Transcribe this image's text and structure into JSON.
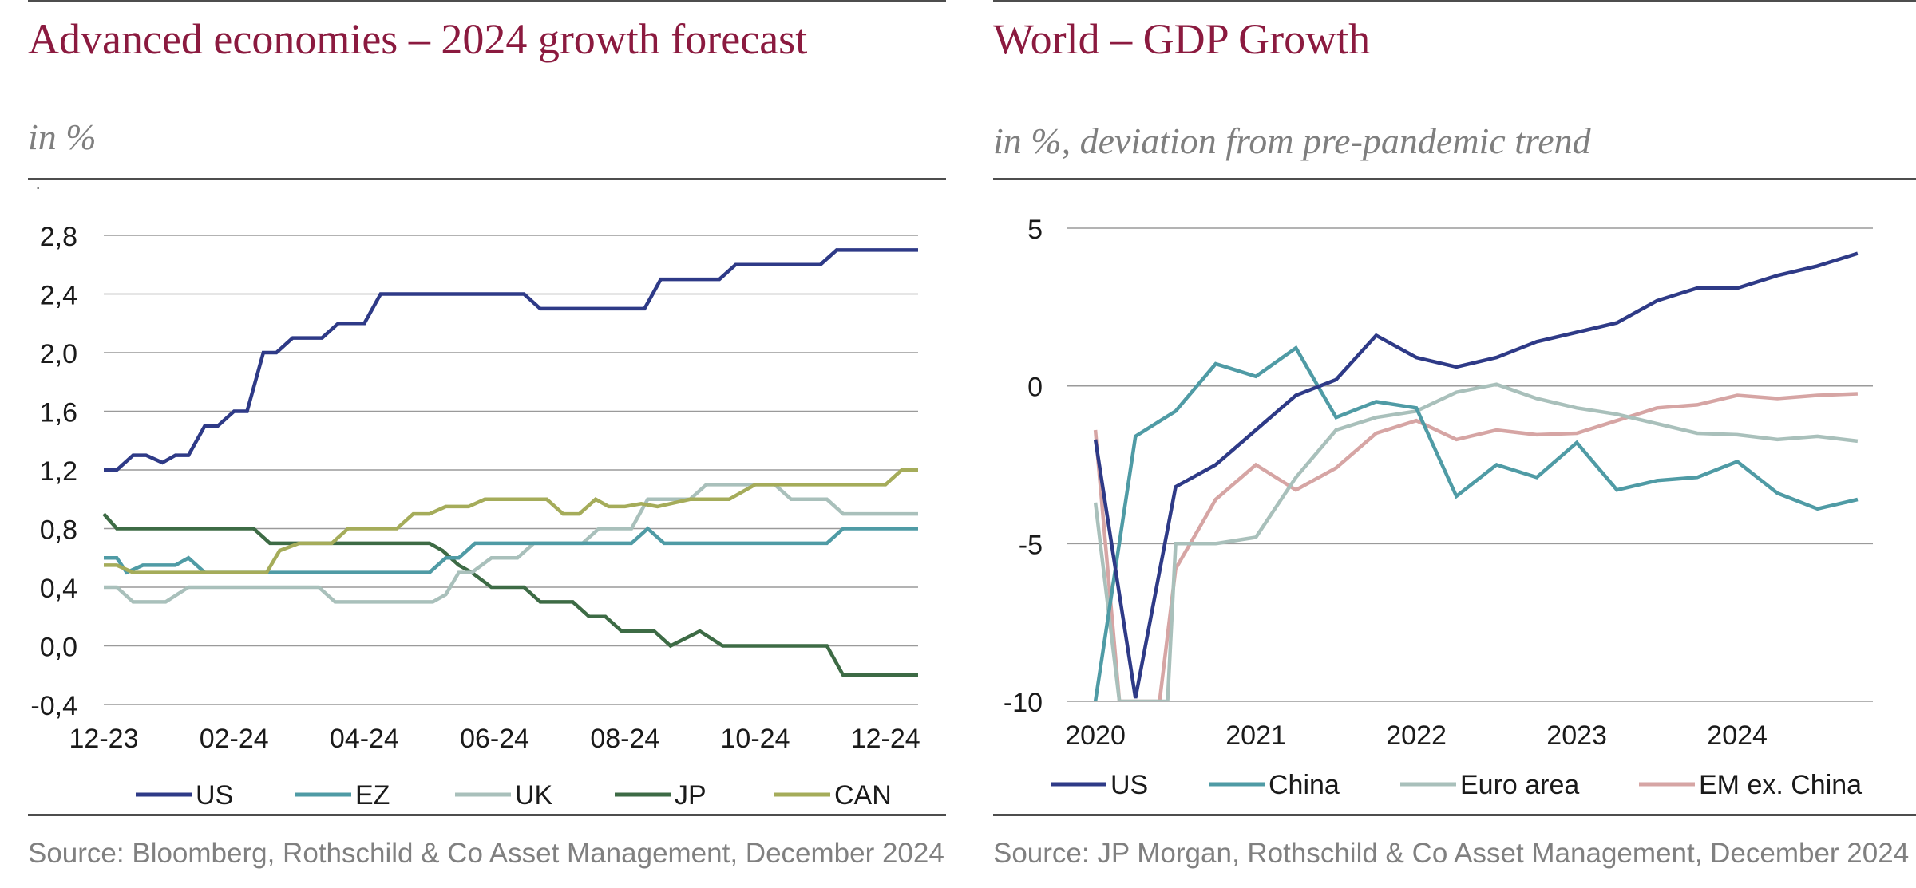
{
  "chart_data": [
    {
      "type": "line",
      "title": "Advanced economies – 2024 growth forecast",
      "subtitle": "in %",
      "source": "Source: Bloomberg, Rothschild & Co Asset Management, December 2024",
      "ylim": [
        -0.4,
        2.8
      ],
      "yticks": [
        -0.4,
        0.0,
        0.4,
        0.8,
        1.2,
        1.6,
        2.0,
        2.4,
        2.8
      ],
      "ytick_labels": [
        "-0,4",
        "0,0",
        "0,4",
        "0,8",
        "1,2",
        "1,6",
        "2,0",
        "2,4",
        "2,8"
      ],
      "x_range": [
        0,
        12.5
      ],
      "xtick_labels": [
        "12-23",
        "02-24",
        "04-24",
        "06-24",
        "08-24",
        "10-24",
        "12-24"
      ],
      "grid": true,
      "legend_position": "bottom",
      "series": [
        {
          "name": "US",
          "color": "#2e3a87",
          "points": [
            [
              0,
              1.2
            ],
            [
              0.2,
              1.2
            ],
            [
              0.45,
              1.3
            ],
            [
              0.65,
              1.3
            ],
            [
              0.9,
              1.25
            ],
            [
              1.1,
              1.3
            ],
            [
              1.3,
              1.3
            ],
            [
              1.55,
              1.5
            ],
            [
              1.75,
              1.5
            ],
            [
              2.0,
              1.6
            ],
            [
              2.2,
              1.6
            ],
            [
              2.45,
              2.0
            ],
            [
              2.65,
              2.0
            ],
            [
              2.9,
              2.1
            ],
            [
              3.35,
              2.1
            ],
            [
              3.6,
              2.2
            ],
            [
              4.0,
              2.2
            ],
            [
              4.25,
              2.4
            ],
            [
              6.45,
              2.4
            ],
            [
              6.7,
              2.3
            ],
            [
              8.3,
              2.3
            ],
            [
              8.55,
              2.5
            ],
            [
              9.45,
              2.5
            ],
            [
              9.7,
              2.6
            ],
            [
              11.0,
              2.6
            ],
            [
              11.25,
              2.7
            ],
            [
              12.5,
              2.7
            ]
          ]
        },
        {
          "name": "EZ",
          "color": "#4f9ba5",
          "points": [
            [
              0,
              0.6
            ],
            [
              0.2,
              0.6
            ],
            [
              0.35,
              0.5
            ],
            [
              0.6,
              0.55
            ],
            [
              1.1,
              0.55
            ],
            [
              1.3,
              0.6
            ],
            [
              1.55,
              0.5
            ],
            [
              5.0,
              0.5
            ],
            [
              5.25,
              0.6
            ],
            [
              5.45,
              0.6
            ],
            [
              5.7,
              0.7
            ],
            [
              8.1,
              0.7
            ],
            [
              8.35,
              0.8
            ],
            [
              8.6,
              0.7
            ],
            [
              11.1,
              0.7
            ],
            [
              11.35,
              0.8
            ],
            [
              12.5,
              0.8
            ]
          ]
        },
        {
          "name": "UK",
          "color": "#a9c0bb",
          "points": [
            [
              0,
              0.4
            ],
            [
              0.2,
              0.4
            ],
            [
              0.45,
              0.3
            ],
            [
              0.95,
              0.3
            ],
            [
              1.3,
              0.4
            ],
            [
              3.3,
              0.4
            ],
            [
              3.55,
              0.3
            ],
            [
              5.05,
              0.3
            ],
            [
              5.25,
              0.35
            ],
            [
              5.45,
              0.5
            ],
            [
              5.65,
              0.5
            ],
            [
              5.95,
              0.6
            ],
            [
              6.35,
              0.6
            ],
            [
              6.6,
              0.7
            ],
            [
              7.35,
              0.7
            ],
            [
              7.6,
              0.8
            ],
            [
              8.1,
              0.8
            ],
            [
              8.35,
              1.0
            ],
            [
              8.75,
              1.0
            ],
            [
              9.0,
              1.0
            ],
            [
              9.25,
              1.1
            ],
            [
              10.3,
              1.1
            ],
            [
              10.55,
              1.0
            ],
            [
              11.1,
              1.0
            ],
            [
              11.35,
              0.9
            ],
            [
              12.5,
              0.9
            ]
          ]
        },
        {
          "name": "JP",
          "color": "#3d6b45",
          "points": [
            [
              0,
              0.9
            ],
            [
              0.2,
              0.8
            ],
            [
              2.3,
              0.8
            ],
            [
              2.55,
              0.7
            ],
            [
              5.0,
              0.7
            ],
            [
              5.2,
              0.65
            ],
            [
              5.45,
              0.55
            ],
            [
              5.65,
              0.5
            ],
            [
              5.95,
              0.4
            ],
            [
              6.45,
              0.4
            ],
            [
              6.7,
              0.3
            ],
            [
              7.2,
              0.3
            ],
            [
              7.45,
              0.2
            ],
            [
              7.7,
              0.2
            ],
            [
              7.95,
              0.1
            ],
            [
              8.45,
              0.1
            ],
            [
              8.7,
              0.0
            ],
            [
              9.15,
              0.1
            ],
            [
              9.5,
              0.0
            ],
            [
              11.1,
              0.0
            ],
            [
              11.35,
              -0.2
            ],
            [
              12.5,
              -0.2
            ]
          ]
        },
        {
          "name": "CAN",
          "color": "#a5ac5a",
          "points": [
            [
              0,
              0.55
            ],
            [
              0.2,
              0.55
            ],
            [
              0.45,
              0.5
            ],
            [
              2.5,
              0.5
            ],
            [
              2.7,
              0.65
            ],
            [
              3.0,
              0.7
            ],
            [
              3.5,
              0.7
            ],
            [
              3.75,
              0.8
            ],
            [
              4.5,
              0.8
            ],
            [
              4.75,
              0.9
            ],
            [
              5.0,
              0.9
            ],
            [
              5.25,
              0.95
            ],
            [
              5.6,
              0.95
            ],
            [
              5.85,
              1.0
            ],
            [
              6.8,
              1.0
            ],
            [
              7.05,
              0.9
            ],
            [
              7.3,
              0.9
            ],
            [
              7.55,
              1.0
            ],
            [
              7.75,
              0.95
            ],
            [
              8.0,
              0.95
            ],
            [
              8.25,
              0.97
            ],
            [
              8.5,
              0.95
            ],
            [
              9.0,
              1.0
            ],
            [
              9.6,
              1.0
            ],
            [
              10.0,
              1.1
            ],
            [
              12.0,
              1.1
            ],
            [
              12.25,
              1.2
            ],
            [
              12.5,
              1.2
            ]
          ]
        }
      ]
    },
    {
      "type": "line",
      "title": "World – GDP Growth",
      "subtitle": "in %, deviation from pre-pandemic trend",
      "source": "Source: JP Morgan, Rothschild & Co Asset Management, December 2024",
      "ylim": [
        -10,
        5
      ],
      "yticks": [
        -10,
        -5,
        0,
        5
      ],
      "ytick_labels": [
        "-10",
        "-5",
        "0",
        "5"
      ],
      "x_range": [
        2019.95,
        2024.85
      ],
      "xtick_labels": [
        "2020",
        "2021",
        "2022",
        "2023",
        "2024"
      ],
      "grid": true,
      "legend_position": "bottom",
      "series": [
        {
          "name": "US",
          "color": "#2e3a87",
          "points": [
            [
              2020.0,
              -1.7
            ],
            [
              2020.25,
              -9.9
            ],
            [
              2020.5,
              -3.2
            ],
            [
              2020.75,
              -2.5
            ],
            [
              2021.0,
              -1.4
            ],
            [
              2021.25,
              -0.3
            ],
            [
              2021.5,
              0.2
            ],
            [
              2021.75,
              1.6
            ],
            [
              2022.0,
              0.9
            ],
            [
              2022.25,
              0.6
            ],
            [
              2022.5,
              0.9
            ],
            [
              2022.75,
              1.4
            ],
            [
              2023.0,
              1.7
            ],
            [
              2023.25,
              2.0
            ],
            [
              2023.5,
              2.7
            ],
            [
              2023.75,
              3.1
            ],
            [
              2024.0,
              3.1
            ],
            [
              2024.25,
              3.5
            ],
            [
              2024.5,
              3.8
            ],
            [
              2024.75,
              4.2
            ]
          ]
        },
        {
          "name": "China",
          "color": "#4f9ba5",
          "points": [
            [
              2020.0,
              -10.0
            ],
            [
              2020.25,
              -1.6
            ],
            [
              2020.5,
              -0.8
            ],
            [
              2020.75,
              0.7
            ],
            [
              2021.0,
              0.3
            ],
            [
              2021.25,
              1.2
            ],
            [
              2021.5,
              -1.0
            ],
            [
              2021.75,
              -0.5
            ],
            [
              2022.0,
              -0.7
            ],
            [
              2022.25,
              -3.5
            ],
            [
              2022.5,
              -2.5
            ],
            [
              2022.75,
              -2.9
            ],
            [
              2023.0,
              -1.8
            ],
            [
              2023.25,
              -3.3
            ],
            [
              2023.5,
              -3.0
            ],
            [
              2023.75,
              -2.9
            ],
            [
              2024.0,
              -2.4
            ],
            [
              2024.25,
              -3.4
            ],
            [
              2024.5,
              -3.9
            ],
            [
              2024.75,
              -3.6
            ]
          ]
        },
        {
          "name": "Euro area",
          "color": "#a9c0bb",
          "points": [
            [
              2020.0,
              -3.7
            ],
            [
              2020.15,
              -10.0
            ],
            [
              2020.45,
              -10.0
            ],
            [
              2020.5,
              -5.0
            ],
            [
              2020.75,
              -5.0
            ],
            [
              2021.0,
              -4.8
            ],
            [
              2021.25,
              -2.9
            ],
            [
              2021.5,
              -1.4
            ],
            [
              2021.75,
              -1.0
            ],
            [
              2022.0,
              -0.8
            ],
            [
              2022.25,
              -0.2
            ],
            [
              2022.5,
              0.05
            ],
            [
              2022.75,
              -0.4
            ],
            [
              2023.0,
              -0.7
            ],
            [
              2023.25,
              -0.9
            ],
            [
              2023.5,
              -1.2
            ],
            [
              2023.75,
              -1.5
            ],
            [
              2024.0,
              -1.55
            ],
            [
              2024.25,
              -1.7
            ],
            [
              2024.5,
              -1.6
            ],
            [
              2024.75,
              -1.75
            ]
          ]
        },
        {
          "name": "EM ex. China",
          "color": "#d6a5a4",
          "points": [
            [
              2020.0,
              -1.4
            ],
            [
              2020.15,
              -10.0
            ],
            [
              2020.4,
              -10.0
            ],
            [
              2020.5,
              -5.8
            ],
            [
              2020.75,
              -3.6
            ],
            [
              2021.0,
              -2.5
            ],
            [
              2021.25,
              -3.3
            ],
            [
              2021.5,
              -2.6
            ],
            [
              2021.75,
              -1.5
            ],
            [
              2022.0,
              -1.1
            ],
            [
              2022.25,
              -1.7
            ],
            [
              2022.5,
              -1.4
            ],
            [
              2022.75,
              -1.55
            ],
            [
              2023.0,
              -1.5
            ],
            [
              2023.25,
              -1.1
            ],
            [
              2023.5,
              -0.7
            ],
            [
              2023.75,
              -0.6
            ],
            [
              2024.0,
              -0.3
            ],
            [
              2024.25,
              -0.4
            ],
            [
              2024.5,
              -0.3
            ],
            [
              2024.75,
              -0.25
            ]
          ]
        }
      ]
    }
  ]
}
